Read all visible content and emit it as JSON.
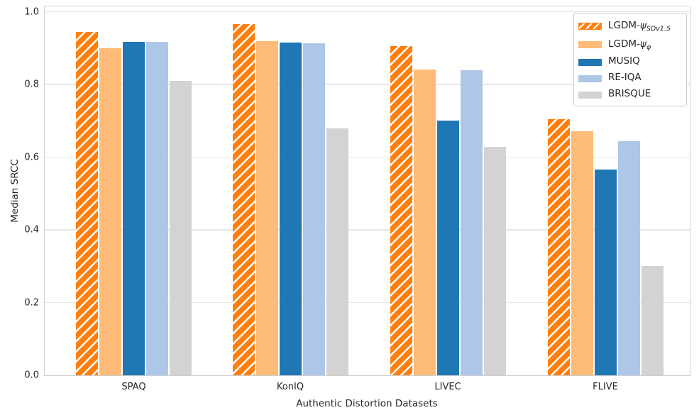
{
  "chart_data": {
    "type": "bar",
    "title": "",
    "xlabel": "Authentic Distortion Datasets",
    "ylabel": "Median SRCC",
    "categories": [
      "SPAQ",
      "KonIQ",
      "LIVEC",
      "FLIVE"
    ],
    "series": [
      {
        "name": "LGDM-ψ_SDv1.5",
        "color": "#ff7f0e",
        "hatch": true,
        "values": [
          0.944,
          0.965,
          0.906,
          0.704
        ]
      },
      {
        "name": "LGDM-ψ_φ",
        "color": "#ffbb78",
        "hatch": false,
        "values": [
          0.9,
          0.919,
          0.841,
          0.671
        ]
      },
      {
        "name": "MUSIQ",
        "color": "#1f77b4",
        "hatch": false,
        "values": [
          0.918,
          0.916,
          0.7,
          0.566
        ]
      },
      {
        "name": "RE-IQA",
        "color": "#aec7e8",
        "hatch": false,
        "values": [
          0.918,
          0.913,
          0.84,
          0.644
        ]
      },
      {
        "name": "BRISQUE",
        "color": "#d3d3d3",
        "hatch": false,
        "values": [
          0.809,
          0.679,
          0.628,
          0.301
        ]
      }
    ],
    "ylim": [
      0.0,
      1.02
    ],
    "yticks": [
      "0.0",
      "0.2",
      "0.4",
      "0.6",
      "0.8",
      "1.0"
    ],
    "grid": "horizontal",
    "legend_position": "upper right",
    "background": "#ffffff",
    "grid_color": "#e7e7e7",
    "spine_color": "#cfcfcf",
    "text_color": "#262626"
  },
  "labels": {
    "ylabel": "Median SRCC",
    "xlabel": "Authentic Distortion Datasets"
  },
  "legend": {
    "items": [
      {
        "prefix": "LGDM-",
        "psi": "ψ",
        "sub": "SDv1.5"
      },
      {
        "prefix": "LGDM-",
        "psi": "ψ",
        "sub": "φ"
      },
      {
        "prefix": "MUSIQ",
        "psi": "",
        "sub": ""
      },
      {
        "prefix": "RE-IQA",
        "psi": "",
        "sub": ""
      },
      {
        "prefix": "BRISQUE",
        "psi": "",
        "sub": ""
      }
    ]
  }
}
